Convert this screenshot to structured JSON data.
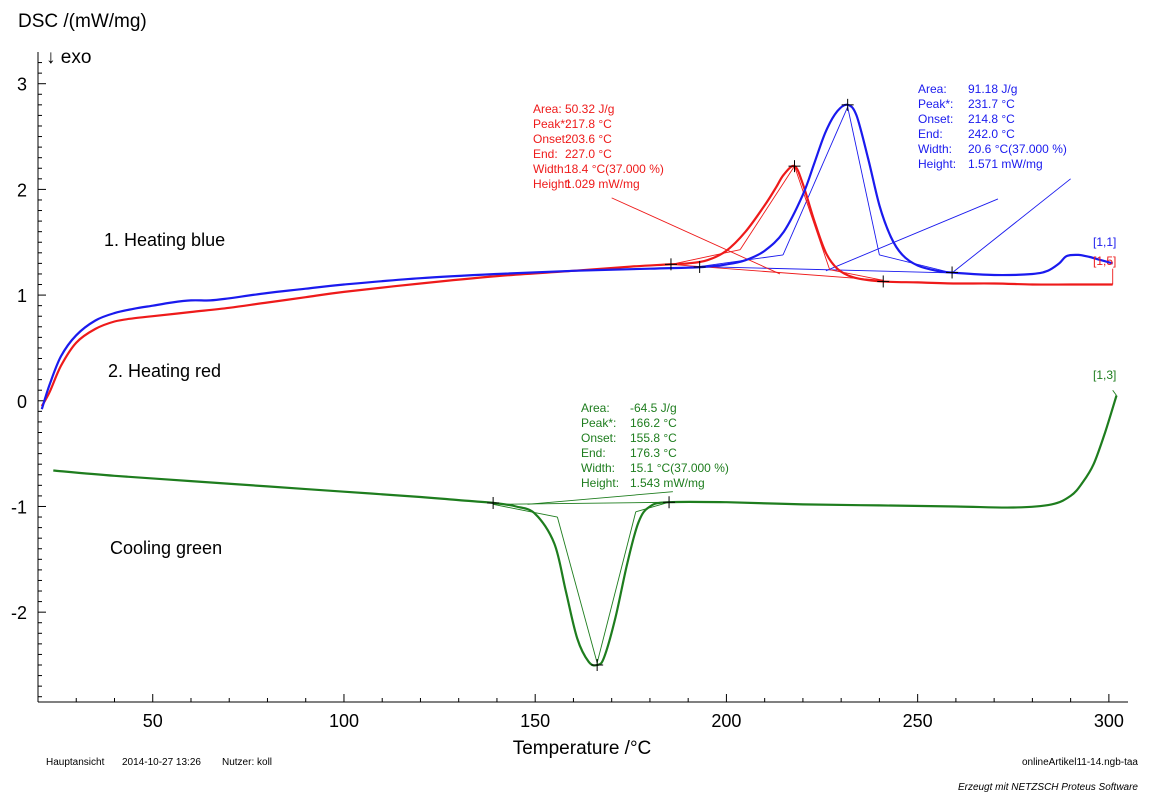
{
  "chart_data": {
    "type": "line",
    "title": "",
    "ylabel": "DSC /(mW/mg)",
    "exo_marker": "↓ exo",
    "xlabel": "Temperature /°C",
    "xlim": [
      20,
      305
    ],
    "ylim": [
      -2.85,
      3.3
    ],
    "x_ticks": [
      "50",
      "100",
      "150",
      "200",
      "250",
      "300"
    ],
    "y_ticks": [
      "3",
      "2",
      "1",
      "0",
      "-1",
      "-2"
    ],
    "grid": false,
    "annotations": {
      "heating_blue": "1. Heating blue",
      "heating_red": "2. Heating red",
      "cooling_green": "Cooling green"
    },
    "series": [
      {
        "key": "blue",
        "color": "#1a1aee",
        "curve_tag": "[1,1]",
        "x": [
          21,
          23,
          26,
          30,
          35,
          40,
          45,
          50,
          55,
          60,
          65,
          70,
          80,
          90,
          100,
          120,
          140,
          160,
          180,
          190,
          195,
          200,
          205,
          210,
          215,
          220,
          223,
          226,
          229,
          231.7,
          234,
          237,
          240,
          243,
          246,
          250,
          255,
          260,
          270,
          280,
          284,
          287,
          289,
          292,
          295,
          298,
          301
        ],
        "y": [
          -0.08,
          0.15,
          0.42,
          0.62,
          0.76,
          0.83,
          0.87,
          0.9,
          0.93,
          0.95,
          0.95,
          0.97,
          1.02,
          1.06,
          1.1,
          1.16,
          1.2,
          1.23,
          1.25,
          1.26,
          1.27,
          1.29,
          1.33,
          1.42,
          1.6,
          1.95,
          2.25,
          2.55,
          2.74,
          2.8,
          2.7,
          2.3,
          1.85,
          1.55,
          1.38,
          1.28,
          1.23,
          1.21,
          1.19,
          1.2,
          1.23,
          1.3,
          1.37,
          1.38,
          1.36,
          1.33,
          1.3
        ],
        "results": [
          {
            "label": "Area:",
            "value": "91.18 J/g"
          },
          {
            "label": "Peak*:",
            "value": "231.7 °C"
          },
          {
            "label": "Onset:",
            "value": "214.8 °C"
          },
          {
            "label": "End:",
            "value": "242.0 °C"
          },
          {
            "label": "Width:",
            "value": "20.6 °C(37.000 %)"
          },
          {
            "label": "Height:",
            "value": "1.571 mW/mg"
          }
        ]
      },
      {
        "key": "red",
        "color": "#ee1a1a",
        "curve_tag": "[1,5]",
        "x": [
          21,
          23,
          26,
          30,
          35,
          40,
          45,
          50,
          60,
          70,
          80,
          90,
          100,
          120,
          140,
          160,
          175,
          185,
          190,
          195,
          200,
          205,
          210,
          213,
          215,
          217.8,
          220,
          223,
          226,
          229,
          233,
          240,
          250,
          260,
          270,
          280,
          290,
          301
        ],
        "y": [
          -0.05,
          0.08,
          0.33,
          0.55,
          0.68,
          0.75,
          0.78,
          0.8,
          0.84,
          0.88,
          0.93,
          0.98,
          1.03,
          1.11,
          1.18,
          1.23,
          1.27,
          1.29,
          1.3,
          1.33,
          1.42,
          1.6,
          1.85,
          2.02,
          2.14,
          2.22,
          2.05,
          1.7,
          1.4,
          1.25,
          1.17,
          1.13,
          1.12,
          1.11,
          1.11,
          1.1,
          1.1,
          1.1
        ],
        "results": [
          {
            "label": "Area:",
            "value": "50.32 J/g"
          },
          {
            "label": "Peak*:",
            "value": "217.8 °C"
          },
          {
            "label": "Onset:",
            "value": "203.6 °C"
          },
          {
            "label": "End:",
            "value": "227.0 °C"
          },
          {
            "label": "Width:",
            "value": "18.4 °C(37.000 %)"
          },
          {
            "label": "Height:",
            "value": "1.029 mW/mg"
          }
        ]
      },
      {
        "key": "green",
        "color": "#1e7d1e",
        "curve_tag": "[1,3]",
        "x": [
          24,
          40,
          60,
          80,
          100,
          120,
          130,
          140,
          145,
          150,
          155,
          158,
          161,
          164,
          166.2,
          168,
          171,
          174,
          177,
          180,
          185,
          200,
          220,
          240,
          260,
          275,
          285,
          290,
          293,
          296,
          299,
          302
        ],
        "y": [
          -0.66,
          -0.71,
          -0.76,
          -0.81,
          -0.86,
          -0.91,
          -0.94,
          -0.97,
          -1.0,
          -1.07,
          -1.35,
          -1.8,
          -2.25,
          -2.47,
          -2.5,
          -2.43,
          -2.05,
          -1.55,
          -1.15,
          -1.0,
          -0.96,
          -0.96,
          -0.98,
          -0.99,
          -1.0,
          -1.01,
          -0.98,
          -0.9,
          -0.78,
          -0.6,
          -0.3,
          0.05
        ],
        "results": [
          {
            "label": "Area:",
            "value": "-64.5 J/g"
          },
          {
            "label": "Peak*:",
            "value": "166.2 °C"
          },
          {
            "label": "Onset:",
            "value": "155.8 °C"
          },
          {
            "label": "End:",
            "value": "176.3 °C"
          },
          {
            "label": "Width:",
            "value": "15.1 °C(37.000 %)"
          },
          {
            "label": "Height:",
            "value": "1.543 mW/mg"
          }
        ]
      }
    ]
  },
  "footer": {
    "view_label": "Hauptansicht",
    "timestamp": "2014-10-27 13:26",
    "user": "Nutzer: koll",
    "filename": "onlineArtikel11-14.ngb-taa",
    "software": "Erzeugt mit NETZSCH Proteus Software"
  }
}
